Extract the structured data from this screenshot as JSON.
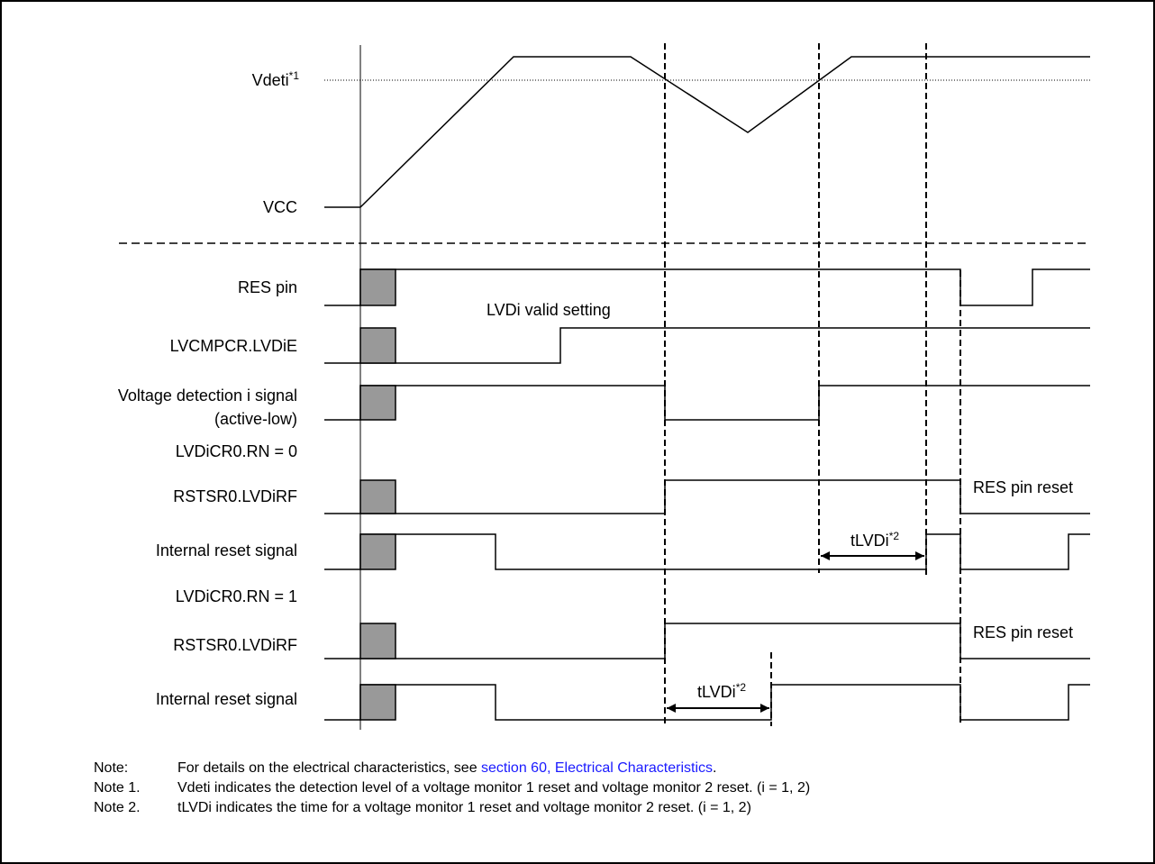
{
  "labels": {
    "vdeti": "Vdeti",
    "vdeti_sup": "*1",
    "vcc": "VCC",
    "res_pin": "RES pin",
    "lvdi_valid_setting": "LVDi valid setting",
    "lvcmpcr": "LVCMPCR.LVDiE",
    "vdet_signal_1": "Voltage detection i signal",
    "vdet_signal_2": "(active-low)",
    "rn0": "LVDiCR0.RN = 0",
    "rstsr_a": "RSTSR0.LVDiRF",
    "res_pin_reset_a": "RES pin reset",
    "internal_reset_a": "Internal reset signal",
    "tlvdi_a": "tLVDi",
    "tlvdi_a_sup": "*2",
    "rn1": "LVDiCR0.RN = 1",
    "rstsr_b": "RSTSR0.LVDiRF",
    "res_pin_reset_b": "RES pin reset",
    "internal_reset_b": "Internal reset signal",
    "tlvdi_b": "tLVDi",
    "tlvdi_b_sup": "*2"
  },
  "notes": {
    "n0_key": "Note:",
    "n0_text_pre": "For details on the electrical characteristics, see ",
    "n0_link": "section 60, Electrical Characteristics",
    "n0_text_post": ".",
    "n1_key": "Note 1.",
    "n1_text": "Vdeti indicates the detection level of a voltage monitor 1 reset and voltage monitor 2 reset.  (i = 1, 2)",
    "n2_key": "Note 2.",
    "n2_text": "tLVDi indicates the time for a voltage monitor 1 reset and voltage monitor 2 reset. (i = 1, 2)"
  },
  "colors": {
    "line": "#000000",
    "fill_box": "#999999",
    "link": "#1a1aff"
  }
}
